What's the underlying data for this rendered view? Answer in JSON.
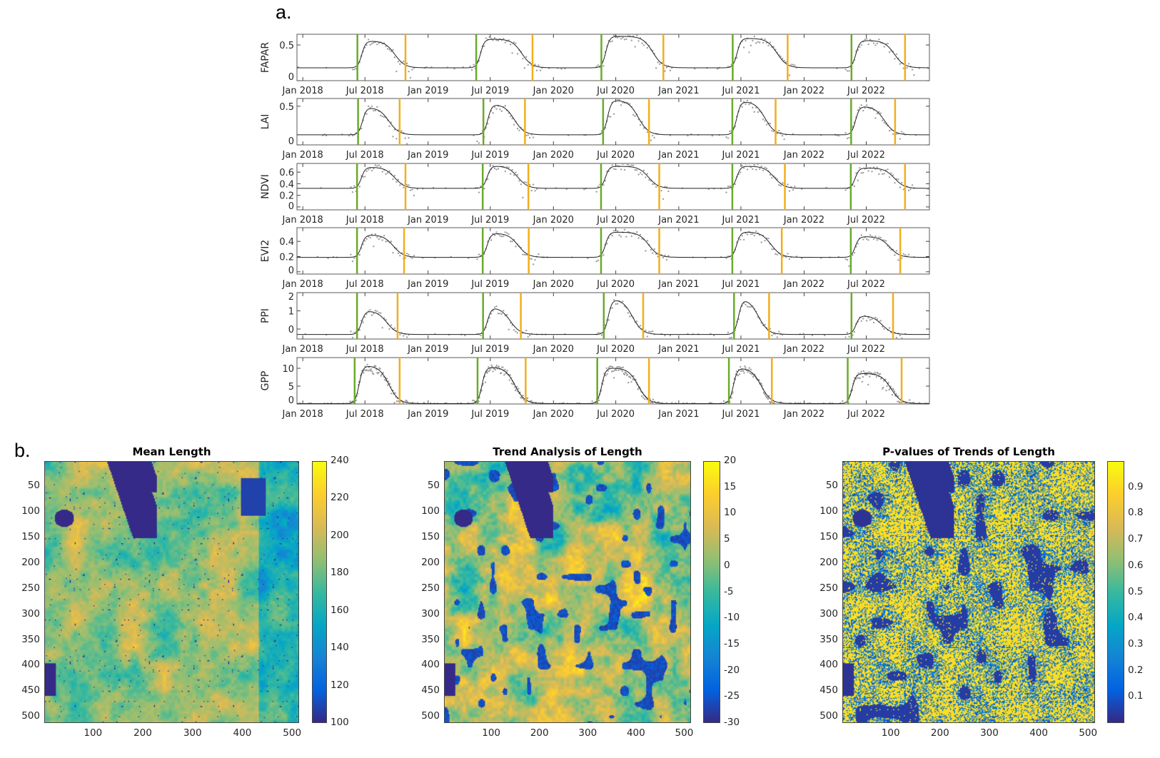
{
  "panel_labels": {
    "a": "a.",
    "b": "b."
  },
  "chart_data": [
    {
      "type": "line",
      "panel": "a",
      "x_axis": {
        "type": "date",
        "range": [
          "2017-12-15",
          "2023-01-01"
        ],
        "ticks": [
          {
            "date": "2018-01-01",
            "label": "Jan 2018"
          },
          {
            "date": "2018-07-01",
            "label": "Jul 2018"
          },
          {
            "date": "2019-01-01",
            "label": "Jan 2019"
          },
          {
            "date": "2019-07-01",
            "label": "Jul 2019"
          },
          {
            "date": "2020-01-01",
            "label": "Jan 2020"
          },
          {
            "date": "2020-07-01",
            "label": "Jul 2020"
          },
          {
            "date": "2021-01-01",
            "label": "Jan 2021"
          },
          {
            "date": "2021-07-01",
            "label": "Jul 2021"
          },
          {
            "date": "2022-01-01",
            "label": "Jan 2022"
          },
          {
            "date": "2022-07-01",
            "label": "Jul 2022"
          }
        ]
      },
      "colors": {
        "fit_curve": "#222222",
        "observations": "#a0a0a0",
        "start_of_season": "#6aaa2a",
        "end_of_season": "#f2ae1c"
      },
      "subplots": [
        {
          "ylabel": "FAPAR",
          "ylim": [
            0,
            0.65
          ],
          "yticks": [
            {
              "v": 0,
              "label": "0"
            },
            {
              "v": 0.5,
              "label": "0.5"
            }
          ],
          "baseline": 0.18,
          "peaks": [
            0.55,
            0.58,
            0.62,
            0.59,
            0.56
          ],
          "start_of_season": [
            "2018-06-09",
            "2019-05-21",
            "2020-05-20",
            "2021-06-07",
            "2022-05-19"
          ],
          "end_of_season": [
            "2018-10-27",
            "2019-11-01",
            "2020-11-17",
            "2021-11-14",
            "2022-10-22"
          ]
        },
        {
          "ylabel": "LAI",
          "ylim": [
            0,
            0.6
          ],
          "yticks": [
            {
              "v": 0,
              "label": "0"
            },
            {
              "v": 0.5,
              "label": "0.5"
            }
          ],
          "baseline": 0.13,
          "peaks": [
            0.47,
            0.51,
            0.57,
            0.55,
            0.49
          ],
          "start_of_season": [
            "2018-06-11",
            "2019-06-11",
            "2020-05-25",
            "2021-06-06",
            "2022-05-18"
          ],
          "end_of_season": [
            "2018-10-10",
            "2019-10-10",
            "2020-10-06",
            "2021-10-10",
            "2022-09-23"
          ]
        },
        {
          "ylabel": "NDVI",
          "ylim": [
            -0.05,
            0.75
          ],
          "yticks": [
            {
              "v": 0,
              "label": "0"
            },
            {
              "v": 0.2,
              "label": "0.2"
            },
            {
              "v": 0.4,
              "label": "0.4"
            },
            {
              "v": 0.6,
              "label": "0.6"
            }
          ],
          "baseline": 0.32,
          "peaks": [
            0.68,
            0.7,
            0.7,
            0.7,
            0.67
          ],
          "start_of_season": [
            "2018-06-08",
            "2019-06-09",
            "2020-05-19",
            "2021-06-06",
            "2022-05-17"
          ],
          "end_of_season": [
            "2018-10-27",
            "2019-10-20",
            "2020-11-05",
            "2021-11-06",
            "2022-10-22"
          ]
        },
        {
          "ylabel": "EVI2",
          "ylim": [
            -0.03,
            0.58
          ],
          "yticks": [
            {
              "v": 0,
              "label": "0"
            },
            {
              "v": 0.2,
              "label": "0.2"
            },
            {
              "v": 0.4,
              "label": "0.4"
            }
          ],
          "baseline": 0.19,
          "peaks": [
            0.48,
            0.5,
            0.52,
            0.52,
            0.46
          ],
          "start_of_season": [
            "2018-06-08",
            "2019-06-09",
            "2020-05-19",
            "2021-06-06",
            "2022-05-17"
          ],
          "end_of_season": [
            "2018-10-23",
            "2019-10-21",
            "2020-11-05",
            "2021-10-28",
            "2022-10-08"
          ]
        },
        {
          "ylabel": "PPI",
          "ylim": [
            -0.55,
            2
          ],
          "yticks": [
            {
              "v": 0,
              "label": "0"
            },
            {
              "v": 1,
              "label": "1"
            },
            {
              "v": 2,
              "label": "2"
            }
          ],
          "baseline": -0.3,
          "peaks": [
            0.95,
            1.1,
            1.55,
            1.5,
            0.7
          ],
          "start_of_season": [
            "2018-06-08",
            "2019-06-10",
            "2020-05-27",
            "2021-06-11",
            "2022-05-19"
          ],
          "end_of_season": [
            "2018-10-04",
            "2019-09-28",
            "2020-09-19",
            "2021-09-21",
            "2022-09-17"
          ]
        },
        {
          "ylabel": "GPP",
          "ylim": [
            0,
            13
          ],
          "yticks": [
            {
              "v": 0,
              "label": "0"
            },
            {
              "v": 5,
              "label": "5"
            },
            {
              "v": 10,
              "label": "10"
            }
          ],
          "baseline": 0.1,
          "peaks": [
            10.5,
            10.2,
            10.0,
            9.8,
            8.5
          ],
          "start_of_season": [
            "2018-06-01",
            "2019-05-25",
            "2020-05-08",
            "2021-05-27",
            "2022-05-08"
          ],
          "end_of_season": [
            "2018-10-10",
            "2019-10-12",
            "2020-10-06",
            "2021-09-29",
            "2022-10-12"
          ]
        }
      ]
    },
    {
      "type": "heatmap",
      "panel": "b",
      "title": "Mean Length",
      "colormap": "parula",
      "clim": [
        100,
        240
      ],
      "colorbar_ticks": [
        "100",
        "120",
        "140",
        "160",
        "180",
        "200",
        "220",
        "240"
      ],
      "xlim": [
        1,
        512
      ],
      "ylim": [
        1,
        512
      ],
      "xticks": [
        "100",
        "200",
        "300",
        "400",
        "500"
      ],
      "yticks": [
        "50",
        "100",
        "150",
        "200",
        "250",
        "300",
        "350",
        "400",
        "450",
        "500"
      ]
    },
    {
      "type": "heatmap",
      "panel": "b",
      "title": "Trend Analysis of Length",
      "colormap": "parula",
      "clim": [
        -30,
        20
      ],
      "colorbar_ticks": [
        "-30",
        "-25",
        "-20",
        "-15",
        "-10",
        "-5",
        "0",
        "5",
        "10",
        "15",
        "20"
      ],
      "xlim": [
        1,
        512
      ],
      "ylim": [
        1,
        512
      ],
      "xticks": [
        "100",
        "200",
        "300",
        "400",
        "500"
      ],
      "yticks": [
        "50",
        "100",
        "150",
        "200",
        "250",
        "300",
        "350",
        "400",
        "450",
        "500"
      ]
    },
    {
      "type": "heatmap",
      "panel": "b",
      "title": "P-values of Trends of Length",
      "colormap": "parula",
      "clim": [
        0,
        1
      ],
      "colorbar_ticks": [
        "0.1",
        "0.2",
        "0.3",
        "0.4",
        "0.5",
        "0.6",
        "0.7",
        "0.8",
        "0.9"
      ],
      "xlim": [
        1,
        512
      ],
      "ylim": [
        1,
        512
      ],
      "xticks": [
        "100",
        "200",
        "300",
        "400",
        "500"
      ],
      "yticks": [
        "50",
        "100",
        "150",
        "200",
        "250",
        "300",
        "350",
        "400",
        "450",
        "500"
      ]
    }
  ]
}
